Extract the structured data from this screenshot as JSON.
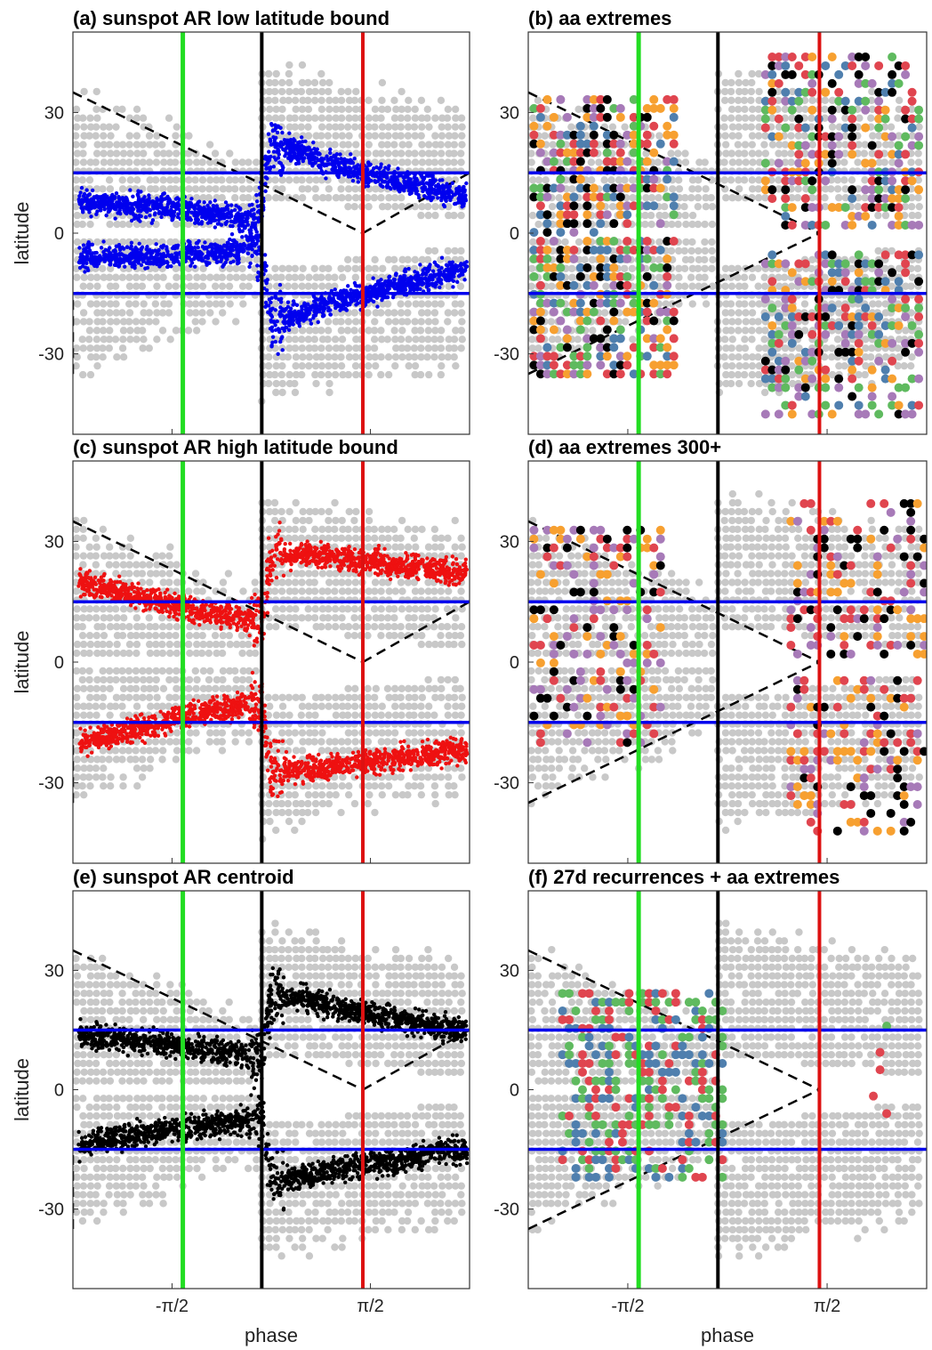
{
  "colors": {
    "background_dots": "#c8c8c8",
    "blue": "#0000ee",
    "red": "#ee1111",
    "black": "#000000",
    "green_line": "#22dd22",
    "red_line": "#dd1111",
    "black_line": "#000000",
    "steel_blue": "#4f7fae",
    "green_dot": "#5fba5f",
    "orange": "#f7a030",
    "purple": "#a77ab8",
    "crimson": "#e0454f"
  },
  "chart_data": [
    {
      "id": "a",
      "type": "scatter",
      "title": "(a) sunspot AR low latitude bound",
      "xlabel": "",
      "ylabel": "latitude",
      "xticks": [
        "-π/2",
        "π/2"
      ],
      "yticks": [
        "30",
        "0",
        "-30"
      ],
      "xlim": [
        -3.14,
        3.14
      ],
      "ylim": [
        -50,
        50
      ],
      "reference_lines": {
        "green_x": -1.4,
        "black_x": -0.15,
        "red_x": 1.45,
        "blue_y": [
          15,
          -15
        ]
      },
      "dashed_envelope": [
        [
          -3.14,
          35
        ],
        [
          1.45,
          0
        ],
        [
          -3.14,
          -35
        ],
        [
          -3.14,
          -15
        ],
        [
          1.45,
          0
        ],
        [
          3.14,
          15
        ]
      ],
      "series": [
        {
          "style": "north_low",
          "color": "blue",
          "points": [
            [
              -3.0,
              8
            ],
            [
              -2.5,
              7
            ],
            [
              -2.0,
              7
            ],
            [
              -1.5,
              6
            ],
            [
              -1.0,
              5
            ],
            [
              -0.5,
              4
            ],
            [
              -0.3,
              2
            ],
            [
              -0.15,
              8
            ],
            [
              0.0,
              22
            ],
            [
              0.5,
              20
            ],
            [
              1.0,
              17
            ],
            [
              1.5,
              15
            ],
            [
              2.0,
              13
            ],
            [
              2.5,
              11
            ],
            [
              3.0,
              9
            ]
          ]
        },
        {
          "style": "south_low",
          "color": "blue",
          "points": [
            [
              -3.0,
              -6
            ],
            [
              -2.5,
              -6
            ],
            [
              -2.0,
              -6
            ],
            [
              -1.5,
              -5
            ],
            [
              -1.0,
              -5
            ],
            [
              -0.5,
              -4
            ],
            [
              -0.3,
              -2
            ],
            [
              -0.15,
              -8
            ],
            [
              0.0,
              -22
            ],
            [
              0.5,
              -20
            ],
            [
              1.0,
              -17
            ],
            [
              1.5,
              -15
            ],
            [
              2.0,
              -13
            ],
            [
              2.5,
              -11
            ],
            [
              3.0,
              -9
            ]
          ]
        }
      ]
    },
    {
      "id": "b",
      "type": "scatter",
      "title": "(b) aa extremes",
      "xlabel": "",
      "ylabel": "",
      "xticks": [
        "-π/2",
        "π/2"
      ],
      "yticks": [
        "30",
        "0",
        "-30"
      ],
      "xlim": [
        -3.14,
        3.14
      ],
      "ylim": [
        -50,
        50
      ],
      "reference_lines": {
        "green_x": -1.4,
        "black_x": -0.15,
        "red_x": 1.45,
        "blue_y": [
          15,
          -15
        ]
      },
      "marker_colors": [
        "steel_blue",
        "green_dot",
        "orange",
        "purple",
        "crimson",
        "black"
      ],
      "clusters": [
        {
          "x": [
            -3.05,
            -0.8
          ],
          "y": [
            -35,
            34
          ],
          "density": 0.55
        },
        {
          "x": [
            0.6,
            3.1
          ],
          "y": [
            2,
            45
          ],
          "density": 0.45
        },
        {
          "x": [
            0.6,
            3.1
          ],
          "y": [
            -45,
            -4
          ],
          "density": 0.45
        }
      ]
    },
    {
      "id": "c",
      "type": "scatter",
      "title": "(c) sunspot AR high latitude bound",
      "xlabel": "",
      "ylabel": "latitude",
      "xticks": [
        "-π/2",
        "π/2"
      ],
      "yticks": [
        "30",
        "0",
        "-30"
      ],
      "xlim": [
        -3.14,
        3.14
      ],
      "ylim": [
        -50,
        50
      ],
      "reference_lines": {
        "green_x": -1.4,
        "black_x": -0.15,
        "red_x": 1.45,
        "blue_y": [
          15,
          -15
        ]
      },
      "dashed_envelope": [
        [
          -3.14,
          35
        ],
        [
          1.45,
          0
        ],
        [
          -3.14,
          -35
        ],
        [
          -3.14,
          -15
        ],
        [
          1.45,
          0
        ],
        [
          3.14,
          15
        ]
      ],
      "series": [
        {
          "style": "north_high",
          "color": "red",
          "points": [
            [
              -3.0,
              20
            ],
            [
              -2.5,
              18
            ],
            [
              -2.0,
              16
            ],
            [
              -1.5,
              14
            ],
            [
              -1.0,
              12
            ],
            [
              -0.5,
              11
            ],
            [
              -0.15,
              10
            ],
            [
              0.0,
              26
            ],
            [
              0.5,
              27
            ],
            [
              1.0,
              26
            ],
            [
              1.5,
              25
            ],
            [
              2.0,
              24
            ],
            [
              2.5,
              23
            ],
            [
              3.0,
              22
            ]
          ]
        },
        {
          "style": "south_high",
          "color": "red",
          "points": [
            [
              -3.0,
              -20
            ],
            [
              -2.5,
              -18
            ],
            [
              -2.0,
              -16
            ],
            [
              -1.5,
              -14
            ],
            [
              -1.0,
              -12
            ],
            [
              -0.5,
              -11
            ],
            [
              -0.15,
              -10
            ],
            [
              0.0,
              -26
            ],
            [
              0.5,
              -27
            ],
            [
              1.0,
              -26
            ],
            [
              1.5,
              -25
            ],
            [
              2.0,
              -24
            ],
            [
              2.5,
              -23
            ],
            [
              3.0,
              -22
            ]
          ]
        }
      ]
    },
    {
      "id": "d",
      "type": "scatter",
      "title": "(d) aa extremes 300+",
      "xlabel": "",
      "ylabel": "",
      "xticks": [
        "-π/2",
        "π/2"
      ],
      "yticks": [
        "30",
        "0",
        "-30"
      ],
      "xlim": [
        -3.14,
        3.14
      ],
      "ylim": [
        -50,
        50
      ],
      "reference_lines": {
        "green_x": -1.4,
        "black_x": -0.15,
        "red_x": 1.45,
        "blue_y": [
          15,
          -15
        ]
      },
      "marker_colors": [
        "orange",
        "purple",
        "crimson",
        "black"
      ],
      "clusters": [
        {
          "x": [
            -3.05,
            -1.0
          ],
          "y": [
            -20,
            34
          ],
          "density": 0.35
        },
        {
          "x": [
            1.0,
            3.1
          ],
          "y": [
            2,
            40
          ],
          "density": 0.3
        },
        {
          "x": [
            1.0,
            3.1
          ],
          "y": [
            -42,
            -4
          ],
          "density": 0.3
        }
      ]
    },
    {
      "id": "e",
      "type": "scatter",
      "title": "(e) sunspot AR centroid",
      "xlabel": "phase",
      "ylabel": "latitude",
      "xticks": [
        "-π/2",
        "π/2"
      ],
      "yticks": [
        "30",
        "0",
        "-30"
      ],
      "xlim": [
        -3.14,
        3.14
      ],
      "ylim": [
        -50,
        50
      ],
      "reference_lines": {
        "green_x": -1.4,
        "black_x": -0.15,
        "red_x": 1.45,
        "blue_y": [
          15,
          -15
        ]
      },
      "dashed_envelope": [
        [
          -3.14,
          35
        ],
        [
          1.45,
          0
        ],
        [
          -3.14,
          -35
        ],
        [
          -3.14,
          -15
        ],
        [
          1.45,
          0
        ],
        [
          3.14,
          15
        ]
      ],
      "series": [
        {
          "style": "north_centroid",
          "color": "black",
          "points": [
            [
              -3.0,
              14
            ],
            [
              -2.5,
              13
            ],
            [
              -2.0,
              12
            ],
            [
              -1.5,
              11
            ],
            [
              -1.0,
              10
            ],
            [
              -0.5,
              9
            ],
            [
              -0.15,
              7
            ],
            [
              0.0,
              24
            ],
            [
              0.5,
              23
            ],
            [
              1.0,
              21
            ],
            [
              1.5,
              19
            ],
            [
              2.0,
              18
            ],
            [
              2.5,
              16
            ],
            [
              3.0,
              15
            ]
          ]
        },
        {
          "style": "south_centroid",
          "color": "black",
          "points": [
            [
              -3.0,
              -14
            ],
            [
              -2.5,
              -12
            ],
            [
              -2.0,
              -11
            ],
            [
              -1.5,
              -10
            ],
            [
              -1.0,
              -9
            ],
            [
              -0.5,
              -8
            ],
            [
              -0.15,
              -7
            ],
            [
              0.0,
              -22
            ],
            [
              0.5,
              -22
            ],
            [
              1.0,
              -20
            ],
            [
              1.5,
              -19
            ],
            [
              2.0,
              -18
            ],
            [
              2.5,
              -16
            ],
            [
              3.0,
              -15
            ]
          ]
        }
      ]
    },
    {
      "id": "f",
      "type": "scatter",
      "title": "(f) 27d recurrences + aa extremes",
      "xlabel": "phase",
      "ylabel": "",
      "xticks": [
        "-π/2",
        "π/2"
      ],
      "yticks": [
        "30",
        "0",
        "-30"
      ],
      "xlim": [
        -3.14,
        3.14
      ],
      "ylim": [
        -50,
        50
      ],
      "reference_lines": {
        "green_x": -1.4,
        "black_x": -0.15,
        "red_x": 1.45,
        "blue_y": [
          15,
          -15
        ]
      },
      "marker_colors": [
        "steel_blue",
        "green_dot",
        "crimson"
      ],
      "clusters": [
        {
          "x": [
            -2.6,
            0.0
          ],
          "y": [
            -22,
            25
          ],
          "density": 0.45
        },
        {
          "x": [
            2.3,
            2.6
          ],
          "y": [
            -17,
            18
          ],
          "density": 0.08
        }
      ]
    }
  ]
}
